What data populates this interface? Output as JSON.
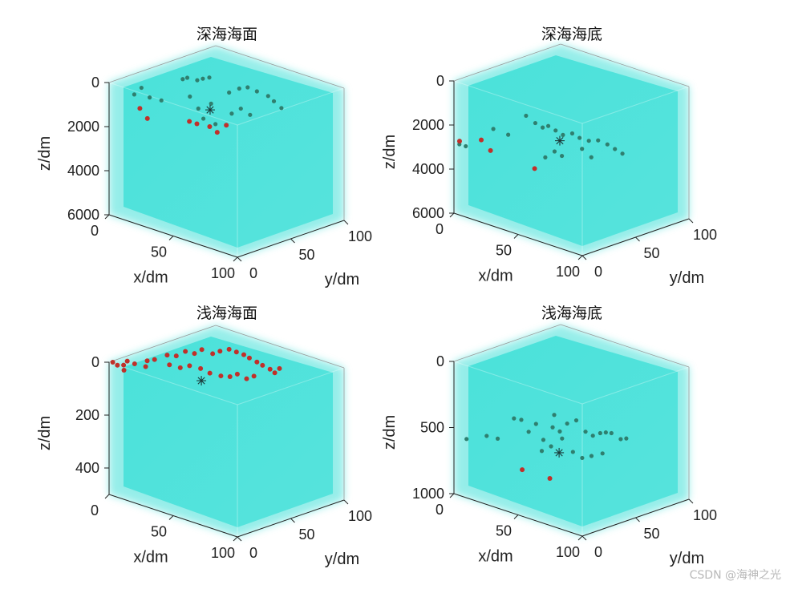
{
  "colors": {
    "volume": "#40e0d8",
    "node_inside": "#2f7f6f",
    "node_highlight": "#c0302a",
    "center_marker": "#1a3a3a",
    "axis": "#222222"
  },
  "watermark": "CSDN @海神之光",
  "chart_data": [
    {
      "type": "scatter3d",
      "title": "深海海面",
      "xlabel": "x/dm",
      "ylabel": "y/dm",
      "zlabel": "z/dm",
      "xlim": [
        0,
        100
      ],
      "ylim": [
        0,
        100
      ],
      "zlim": [
        0,
        6000
      ],
      "xticks": [
        "0",
        "50",
        "100"
      ],
      "yticks": [
        "0",
        "50",
        "100"
      ],
      "zticks": [
        "0",
        "2000",
        "4000",
        "6000"
      ],
      "z_reversed": true,
      "center": {
        "x": 55,
        "y": 55,
        "z": 1200
      },
      "points": [
        {
          "x": 8,
          "y": 20,
          "z": 700
        },
        {
          "x": 10,
          "y": 26,
          "z": 450
        },
        {
          "x": 14,
          "y": 31,
          "z": 900
        },
        {
          "x": 18,
          "y": 40,
          "z": 1100
        },
        {
          "x": 22,
          "y": 60,
          "z": 350
        },
        {
          "x": 24,
          "y": 63,
          "z": 300
        },
        {
          "x": 28,
          "y": 70,
          "z": 450
        },
        {
          "x": 32,
          "y": 72,
          "z": 350
        },
        {
          "x": 36,
          "y": 75,
          "z": 280
        },
        {
          "x": 34,
          "y": 55,
          "z": 900
        },
        {
          "x": 40,
          "y": 58,
          "z": 1400
        },
        {
          "x": 46,
          "y": 66,
          "z": 1200
        },
        {
          "x": 52,
          "y": 80,
          "z": 800
        },
        {
          "x": 58,
          "y": 85,
          "z": 600
        },
        {
          "x": 64,
          "y": 88,
          "z": 500
        },
        {
          "x": 70,
          "y": 92,
          "z": 650
        },
        {
          "x": 78,
          "y": 96,
          "z": 800
        },
        {
          "x": 84,
          "y": 96,
          "z": 950
        },
        {
          "x": 90,
          "y": 98,
          "z": 1200
        },
        {
          "x": 62,
          "y": 72,
          "z": 1500
        },
        {
          "x": 66,
          "y": 78,
          "z": 1300
        },
        {
          "x": 72,
          "y": 82,
          "z": 1550
        },
        {
          "x": 48,
          "y": 55,
          "z": 1700
        },
        {
          "x": 56,
          "y": 60,
          "z": 1900
        }
      ],
      "highlighted": [
        {
          "x": 12,
          "y": 22,
          "z": 1300
        },
        {
          "x": 18,
          "y": 24,
          "z": 1700
        },
        {
          "x": 38,
          "y": 50,
          "z": 1900
        },
        {
          "x": 44,
          "y": 52,
          "z": 1950
        },
        {
          "x": 50,
          "y": 60,
          "z": 2100
        },
        {
          "x": 56,
          "y": 62,
          "z": 2300
        },
        {
          "x": 60,
          "y": 68,
          "z": 2000
        }
      ]
    },
    {
      "type": "scatter3d",
      "title": "深海海底",
      "xlabel": "x/dm",
      "ylabel": "y/dm",
      "zlabel": "z/dm",
      "xlim": [
        0,
        100
      ],
      "ylim": [
        0,
        100
      ],
      "zlim": [
        0,
        6000
      ],
      "xticks": [
        "0",
        "50",
        "100"
      ],
      "yticks": [
        "0",
        "50",
        "100"
      ],
      "zticks": [
        "0",
        "2000",
        "4000",
        "6000"
      ],
      "z_reversed": true,
      "center": {
        "x": 60,
        "y": 55,
        "z": 2600
      },
      "points": [
        {
          "x": 2,
          "y": 4,
          "z": 2900
        },
        {
          "x": 5,
          "y": 8,
          "z": 3000
        },
        {
          "x": 10,
          "y": 34,
          "z": 2500
        },
        {
          "x": 20,
          "y": 40,
          "z": 2700
        },
        {
          "x": 24,
          "y": 56,
          "z": 2000
        },
        {
          "x": 30,
          "y": 60,
          "z": 2300
        },
        {
          "x": 34,
          "y": 64,
          "z": 2500
        },
        {
          "x": 38,
          "y": 66,
          "z": 2400
        },
        {
          "x": 42,
          "y": 70,
          "z": 2600
        },
        {
          "x": 46,
          "y": 74,
          "z": 2800
        },
        {
          "x": 52,
          "y": 78,
          "z": 2700
        },
        {
          "x": 56,
          "y": 82,
          "z": 2900
        },
        {
          "x": 62,
          "y": 86,
          "z": 3000
        },
        {
          "x": 68,
          "y": 90,
          "z": 2950
        },
        {
          "x": 74,
          "y": 94,
          "z": 3100
        },
        {
          "x": 80,
          "y": 96,
          "z": 3250
        },
        {
          "x": 86,
          "y": 98,
          "z": 3400
        },
        {
          "x": 50,
          "y": 60,
          "z": 3300
        },
        {
          "x": 54,
          "y": 64,
          "z": 3500
        },
        {
          "x": 44,
          "y": 56,
          "z": 3600
        },
        {
          "x": 64,
          "y": 76,
          "z": 3200
        },
        {
          "x": 70,
          "y": 80,
          "z": 3550
        }
      ],
      "highlighted": [
        {
          "x": 4,
          "y": 2,
          "z": 2700
        },
        {
          "x": 18,
          "y": 22,
          "z": 3200
        },
        {
          "x": 42,
          "y": 46,
          "z": 4000
        },
        {
          "x": 12,
          "y": 18,
          "z": 2750
        }
      ]
    },
    {
      "type": "scatter3d",
      "title": "浅海海面",
      "xlabel": "x/dm",
      "ylabel": "y/dm",
      "zlabel": "z/dm",
      "xlim": [
        0,
        100
      ],
      "ylim": [
        0,
        100
      ],
      "zlim": [
        0,
        500
      ],
      "xticks": [
        "0",
        "50",
        "100"
      ],
      "yticks": [
        "0",
        "50",
        "100"
      ],
      "zticks": [
        "0",
        "200",
        "400"
      ],
      "z_reversed": true,
      "center": {
        "x": 55,
        "y": 45,
        "z": 55
      },
      "points": [],
      "highlighted": [
        {
          "x": 2,
          "y": 2,
          "z": 0
        },
        {
          "x": 5,
          "y": 4,
          "z": 10
        },
        {
          "x": 8,
          "y": 12,
          "z": 0
        },
        {
          "x": 12,
          "y": 16,
          "z": 10
        },
        {
          "x": 16,
          "y": 26,
          "z": 5
        },
        {
          "x": 20,
          "y": 30,
          "z": 0
        },
        {
          "x": 24,
          "y": 40,
          "z": -10
        },
        {
          "x": 28,
          "y": 46,
          "z": -5
        },
        {
          "x": 32,
          "y": 52,
          "z": -20
        },
        {
          "x": 36,
          "y": 58,
          "z": -10
        },
        {
          "x": 40,
          "y": 62,
          "z": -25
        },
        {
          "x": 44,
          "y": 70,
          "z": -5
        },
        {
          "x": 48,
          "y": 74,
          "z": -15
        },
        {
          "x": 52,
          "y": 80,
          "z": -20
        },
        {
          "x": 56,
          "y": 84,
          "z": -10
        },
        {
          "x": 60,
          "y": 88,
          "z": 0
        },
        {
          "x": 64,
          "y": 90,
          "z": 10
        },
        {
          "x": 70,
          "y": 92,
          "z": 20
        },
        {
          "x": 74,
          "y": 94,
          "z": 30
        },
        {
          "x": 80,
          "y": 96,
          "z": 40
        },
        {
          "x": 84,
          "y": 97,
          "z": 50
        },
        {
          "x": 88,
          "y": 98,
          "z": 30
        },
        {
          "x": 40,
          "y": 48,
          "z": 20
        },
        {
          "x": 46,
          "y": 54,
          "z": 30
        },
        {
          "x": 52,
          "y": 58,
          "z": 45
        },
        {
          "x": 58,
          "y": 64,
          "z": 55
        },
        {
          "x": 62,
          "y": 70,
          "z": 60
        },
        {
          "x": 66,
          "y": 74,
          "z": 50
        },
        {
          "x": 72,
          "y": 78,
          "z": 65
        },
        {
          "x": 76,
          "y": 82,
          "z": 55
        },
        {
          "x": 18,
          "y": 22,
          "z": 20
        },
        {
          "x": 30,
          "y": 36,
          "z": 15
        },
        {
          "x": 34,
          "y": 44,
          "z": 30
        },
        {
          "x": 10,
          "y": 6,
          "z": 25
        },
        {
          "x": 6,
          "y": 10,
          "z": 15
        }
      ]
    },
    {
      "type": "scatter3d",
      "title": "浅海海底",
      "xlabel": "x/dm",
      "ylabel": "y/dm",
      "zlabel": "z/dm",
      "xlim": [
        0,
        100
      ],
      "ylim": [
        0,
        100
      ],
      "zlim": [
        0,
        1000
      ],
      "xticks": [
        "0",
        "50",
        "100"
      ],
      "yticks": [
        "0",
        "50",
        "100"
      ],
      "zticks": [
        "0",
        "500",
        "1000"
      ],
      "z_reversed": true,
      "center": {
        "x": 62,
        "y": 52,
        "z": 660
      },
      "points": [
        {
          "x": 4,
          "y": 10,
          "z": 600
        },
        {
          "x": 14,
          "y": 22,
          "z": 580
        },
        {
          "x": 20,
          "y": 28,
          "z": 600
        },
        {
          "x": 26,
          "y": 40,
          "z": 460
        },
        {
          "x": 30,
          "y": 44,
          "z": 470
        },
        {
          "x": 34,
          "y": 48,
          "z": 560
        },
        {
          "x": 38,
          "y": 52,
          "z": 500
        },
        {
          "x": 42,
          "y": 56,
          "z": 620
        },
        {
          "x": 46,
          "y": 64,
          "z": 440
        },
        {
          "x": 50,
          "y": 66,
          "z": 560
        },
        {
          "x": 54,
          "y": 70,
          "z": 500
        },
        {
          "x": 58,
          "y": 76,
          "z": 480
        },
        {
          "x": 64,
          "y": 80,
          "z": 560
        },
        {
          "x": 68,
          "y": 84,
          "z": 590
        },
        {
          "x": 72,
          "y": 88,
          "z": 570
        },
        {
          "x": 76,
          "y": 90,
          "z": 560
        },
        {
          "x": 80,
          "y": 92,
          "z": 560
        },
        {
          "x": 86,
          "y": 96,
          "z": 600
        },
        {
          "x": 90,
          "y": 98,
          "z": 590
        },
        {
          "x": 60,
          "y": 70,
          "z": 700
        },
        {
          "x": 66,
          "y": 74,
          "z": 740
        },
        {
          "x": 72,
          "y": 78,
          "z": 720
        },
        {
          "x": 78,
          "y": 84,
          "z": 700
        },
        {
          "x": 44,
          "y": 52,
          "z": 690
        },
        {
          "x": 50,
          "y": 56,
          "z": 650
        },
        {
          "x": 56,
          "y": 62,
          "z": 590
        },
        {
          "x": 48,
          "y": 60,
          "z": 520
        }
      ],
      "highlighted": [
        {
          "x": 40,
          "y": 34,
          "z": 800
        },
        {
          "x": 56,
          "y": 48,
          "z": 860
        }
      ]
    }
  ]
}
